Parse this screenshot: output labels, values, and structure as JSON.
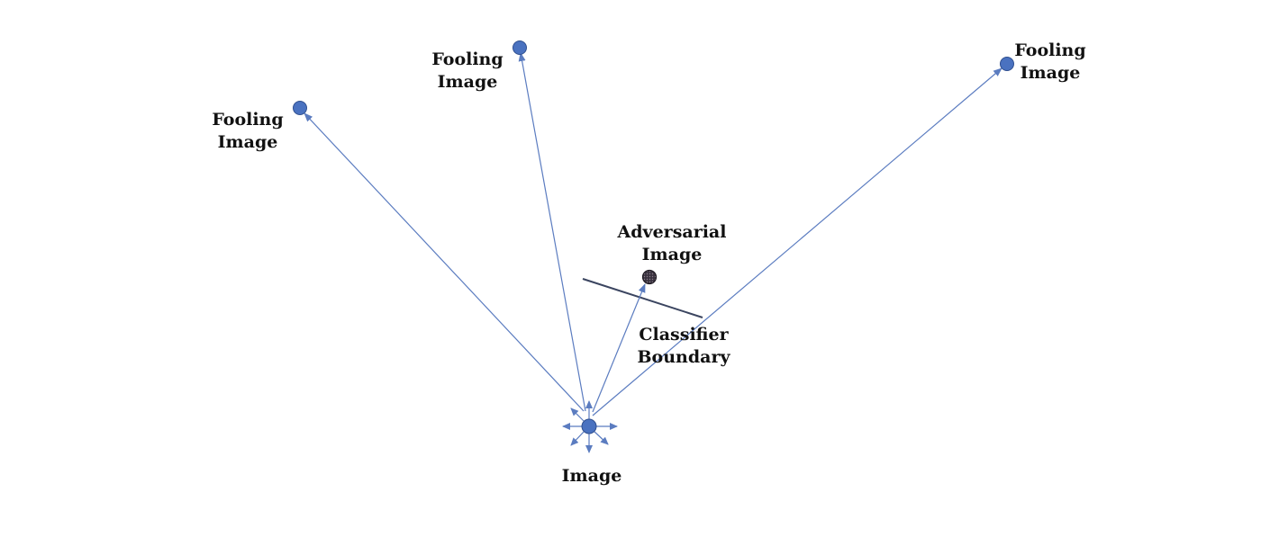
{
  "colors": {
    "node": "#4a72c0",
    "node_stroke": "#2f4f8f",
    "arrow": "#5b7cc0",
    "adversarial_node": "#3a3340",
    "boundary": "#3b4560",
    "text": "#111111"
  },
  "nodes": {
    "image": {
      "label": "Image"
    },
    "fooling_left": {
      "label_line1": "Fooling",
      "label_line2": "Image"
    },
    "fooling_top": {
      "label_line1": "Fooling",
      "label_line2": "Image"
    },
    "fooling_right": {
      "label_line1": "Fooling",
      "label_line2": "Image"
    },
    "adversarial": {
      "label_line1": "Adversarial",
      "label_line2": "Image"
    }
  },
  "boundary": {
    "label_line1": "Classifier",
    "label_line2": "Boundary"
  }
}
